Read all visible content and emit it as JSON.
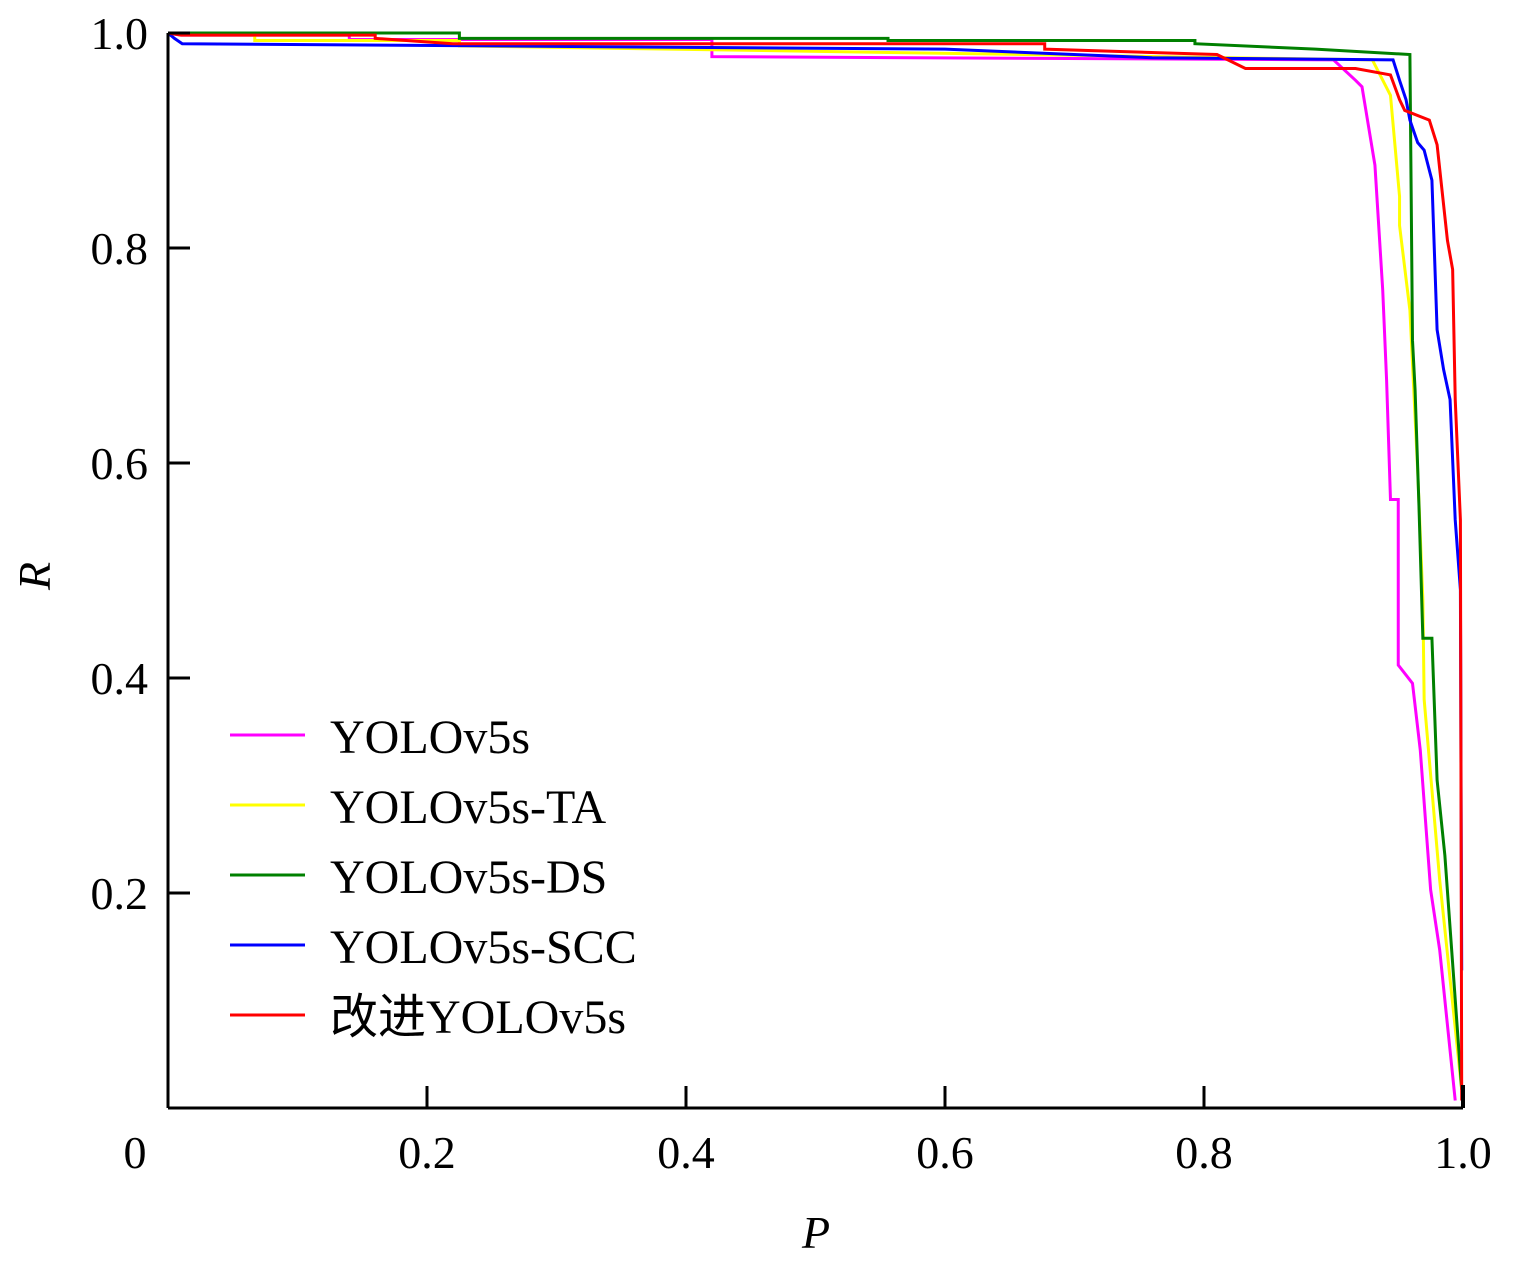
{
  "chart_data": {
    "type": "line",
    "title": "",
    "xlabel": "P",
    "ylabel": "R",
    "xlim": [
      0,
      1.0
    ],
    "ylim": [
      0,
      1.0
    ],
    "grid": false,
    "legend_position": "bottom-left",
    "xticks": [
      {
        "value": 0,
        "label": "0"
      },
      {
        "value": 0.2,
        "label": "0.2"
      },
      {
        "value": 0.4,
        "label": "0.4"
      },
      {
        "value": 0.6,
        "label": "0.6"
      },
      {
        "value": 0.8,
        "label": "0.8"
      },
      {
        "value": 1.0,
        "label": "1.0"
      }
    ],
    "yticks": [
      {
        "value": 0.2,
        "label": "0.2"
      },
      {
        "value": 0.4,
        "label": "0.4"
      },
      {
        "value": 0.6,
        "label": "0.6"
      },
      {
        "value": 0.8,
        "label": "0.8"
      },
      {
        "value": 1.0,
        "label": "1.0"
      }
    ],
    "series": [
      {
        "name": "YOLOv5s",
        "color": "#ff00ff",
        "points": [
          [
            0.0,
            1.0
          ],
          [
            0.01,
            0.998
          ],
          [
            0.14,
            0.998
          ],
          [
            0.14,
            0.994
          ],
          [
            0.42,
            0.994
          ],
          [
            0.42,
            0.978
          ],
          [
            0.9,
            0.975
          ],
          [
            0.917,
            0.956
          ],
          [
            0.922,
            0.95
          ],
          [
            0.932,
            0.877
          ],
          [
            0.938,
            0.761
          ],
          [
            0.941,
            0.677
          ],
          [
            0.944,
            0.566
          ],
          [
            0.95,
            0.566
          ],
          [
            0.95,
            0.412
          ],
          [
            0.961,
            0.395
          ],
          [
            0.967,
            0.333
          ],
          [
            0.975,
            0.203
          ],
          [
            0.982,
            0.147
          ],
          [
            0.994,
            0.007
          ]
        ]
      },
      {
        "name": "YOLOv5s-TA",
        "color": "#ffff00",
        "points": [
          [
            0.0,
            1.0
          ],
          [
            0.067,
            0.998
          ],
          [
            0.067,
            0.993
          ],
          [
            0.225,
            0.993
          ],
          [
            0.225,
            0.988
          ],
          [
            0.93,
            0.975
          ],
          [
            0.944,
            0.942
          ],
          [
            0.951,
            0.848
          ],
          [
            0.951,
            0.821
          ],
          [
            0.959,
            0.742
          ],
          [
            0.965,
            0.593
          ],
          [
            0.969,
            0.473
          ],
          [
            0.97,
            0.38
          ],
          [
            0.982,
            0.212
          ],
          [
            0.999,
            0.017
          ]
        ]
      },
      {
        "name": "YOLOv5s-DS",
        "color": "#008000",
        "points": [
          [
            0.0,
            1.0
          ],
          [
            0.225,
            1.0
          ],
          [
            0.225,
            0.995
          ],
          [
            0.556,
            0.995
          ],
          [
            0.556,
            0.993
          ],
          [
            0.793,
            0.993
          ],
          [
            0.793,
            0.99
          ],
          [
            0.886,
            0.985
          ],
          [
            0.959,
            0.98
          ],
          [
            0.961,
            0.714
          ],
          [
            0.963,
            0.668
          ],
          [
            0.966,
            0.56
          ],
          [
            0.969,
            0.437
          ],
          [
            0.976,
            0.437
          ],
          [
            0.98,
            0.305
          ],
          [
            0.986,
            0.235
          ],
          [
            0.999,
            0.017
          ]
        ]
      },
      {
        "name": "YOLOv5s-SCC",
        "color": "#0000ff",
        "points": [
          [
            0.0,
            1.0
          ],
          [
            0.005,
            0.995
          ],
          [
            0.011,
            0.99
          ],
          [
            0.6,
            0.985
          ],
          [
            0.76,
            0.977
          ],
          [
            0.946,
            0.975
          ],
          [
            0.951,
            0.956
          ],
          [
            0.956,
            0.938
          ],
          [
            0.959,
            0.919
          ],
          [
            0.965,
            0.898
          ],
          [
            0.97,
            0.891
          ],
          [
            0.976,
            0.863
          ],
          [
            0.98,
            0.724
          ],
          [
            0.985,
            0.687
          ],
          [
            0.99,
            0.659
          ],
          [
            0.994,
            0.547
          ],
          [
            0.998,
            0.482
          ],
          [
            0.999,
            0.128
          ]
        ]
      },
      {
        "name": "改进YOLOv5s",
        "color": "#ff0000",
        "points": [
          [
            0.0,
            1.0
          ],
          [
            0.01,
            0.998
          ],
          [
            0.16,
            0.998
          ],
          [
            0.16,
            0.995
          ],
          [
            0.22,
            0.99
          ],
          [
            0.677,
            0.99
          ],
          [
            0.677,
            0.985
          ],
          [
            0.81,
            0.98
          ],
          [
            0.832,
            0.967
          ],
          [
            0.917,
            0.967
          ],
          [
            0.944,
            0.961
          ],
          [
            0.951,
            0.938
          ],
          [
            0.955,
            0.928
          ],
          [
            0.974,
            0.919
          ],
          [
            0.98,
            0.896
          ],
          [
            0.988,
            0.807
          ],
          [
            0.992,
            0.78
          ],
          [
            0.994,
            0.659
          ],
          [
            0.998,
            0.547
          ],
          [
            0.999,
            0.007
          ]
        ]
      }
    ]
  }
}
